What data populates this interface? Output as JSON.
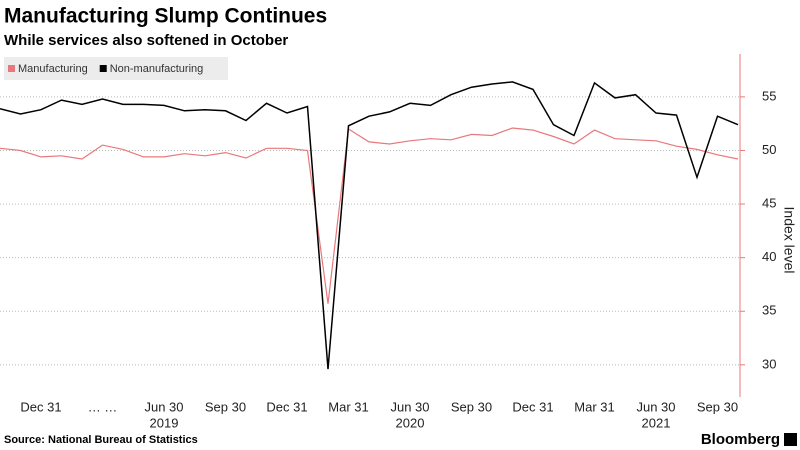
{
  "chart_data": {
    "type": "line",
    "title": "Manufacturing Slump Continues",
    "subtitle": "While services also softened in October",
    "y_label": "Index level",
    "source": "Source: National Bureau of Statistics",
    "brand": "Bloomberg",
    "categories": [
      null,
      null,
      "Dec 31",
      null,
      null,
      "… …",
      null,
      null,
      "Jun 30",
      null,
      null,
      "Sep 30",
      null,
      null,
      "Dec 31",
      null,
      null,
      "Mar 31",
      null,
      null,
      "Jun 30",
      null,
      null,
      "Sep 30",
      null,
      null,
      "Dec 31",
      null,
      null,
      "Mar 31",
      null,
      null,
      "Jun 30",
      null,
      null,
      "Sep 30",
      null
    ],
    "years": [
      {
        "label": "2019",
        "at": 8
      },
      {
        "label": "2020",
        "at": 20
      },
      {
        "label": "2021",
        "at": 32
      }
    ],
    "series": [
      {
        "name": "Manufacturing",
        "color": "#e8787c",
        "values": [
          50.2,
          50.0,
          49.4,
          49.5,
          49.2,
          50.5,
          50.1,
          49.4,
          49.4,
          49.7,
          49.5,
          49.8,
          49.3,
          50.2,
          50.2,
          50.0,
          35.7,
          52.0,
          50.8,
          50.6,
          50.9,
          51.1,
          51.0,
          51.5,
          51.4,
          52.1,
          51.9,
          51.3,
          50.6,
          51.9,
          51.1,
          51.0,
          50.9,
          50.4,
          50.1,
          49.6,
          49.2
        ]
      },
      {
        "name": "Non-manufacturing",
        "color": "#000000",
        "values": [
          53.9,
          53.4,
          53.8,
          54.7,
          54.3,
          54.8,
          54.3,
          54.3,
          54.2,
          53.7,
          53.8,
          53.7,
          52.8,
          54.4,
          53.5,
          54.1,
          29.6,
          52.3,
          53.2,
          53.6,
          54.4,
          54.2,
          55.2,
          55.9,
          56.2,
          56.4,
          55.7,
          52.4,
          51.4,
          56.3,
          54.9,
          55.2,
          53.5,
          53.3,
          47.5,
          53.2,
          52.4
        ]
      }
    ],
    "ylim": [
      27,
      59
    ],
    "yticks": [
      30,
      35,
      40,
      45,
      50,
      55
    ],
    "grid": true,
    "axis_color": "#e8787c"
  }
}
